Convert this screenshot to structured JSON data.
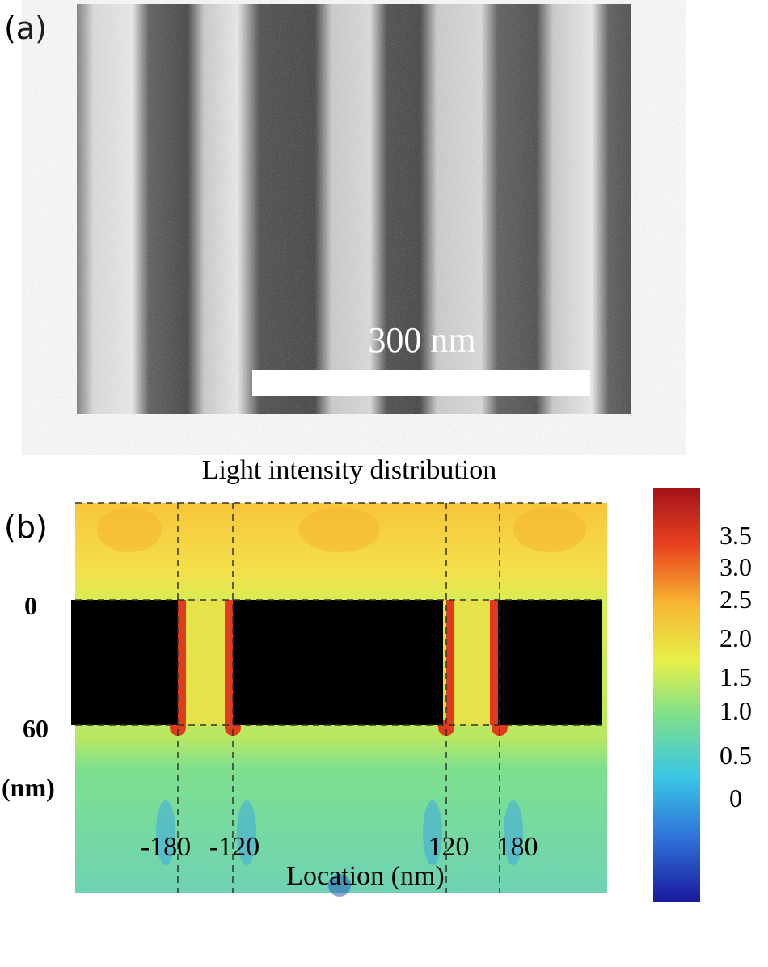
{
  "panel_a": {
    "label": "(a)",
    "scale_bar": "300 nm"
  },
  "panel_b": {
    "label": "(b)",
    "title": "Light intensity distribution",
    "y_ticks": [
      "0",
      "60"
    ],
    "y_unit": "(nm)",
    "x_ticks": [
      "-180",
      "-120",
      "120",
      "180"
    ],
    "x_label": "Location (nm)",
    "colorbar_ticks": [
      "3.5",
      "3.0",
      "2.5",
      "2.0",
      "1.5",
      "1.0",
      "0.5",
      "0"
    ]
  }
}
